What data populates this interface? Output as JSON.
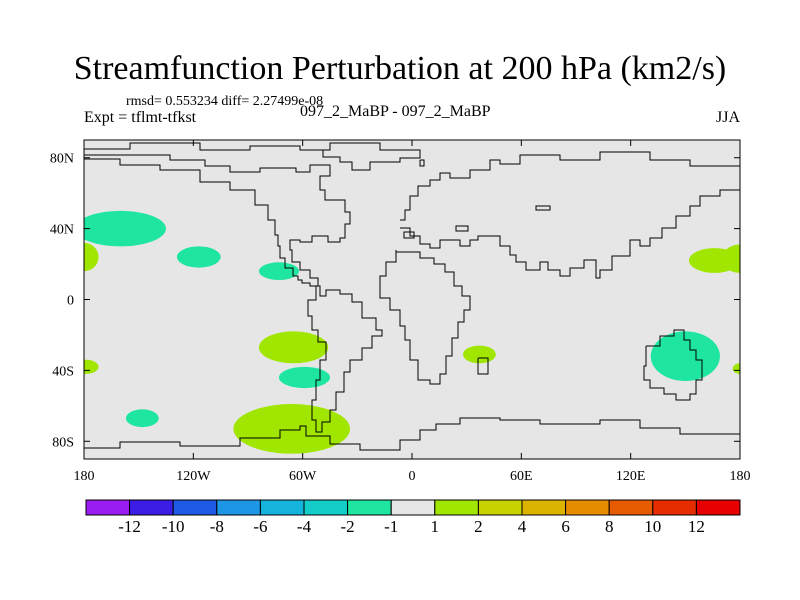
{
  "chart_data": {
    "type": "heatmap",
    "title": "Streamfunction Perturbation at 200 hPa (km2/s)",
    "stats_text": "rmsd= 0.553234 diff= 2.27499e-08",
    "left_label": "Expt = tflmt-tfkst",
    "center_label": "097_2_MaBP - 097_2_MaBP",
    "right_label": "JJA",
    "x_range": [
      -180,
      180
    ],
    "y_range": [
      -90,
      90
    ],
    "x_ticks": [
      {
        "value": -180,
        "label": "180"
      },
      {
        "value": -120,
        "label": "120W"
      },
      {
        "value": -60,
        "label": "60W"
      },
      {
        "value": 0,
        "label": "0"
      },
      {
        "value": 60,
        "label": "60E"
      },
      {
        "value": 120,
        "label": "120E"
      },
      {
        "value": 180,
        "label": "180"
      }
    ],
    "y_ticks": [
      {
        "value": 80,
        "label": "80N"
      },
      {
        "value": 40,
        "label": "40N"
      },
      {
        "value": 0,
        "label": "0"
      },
      {
        "value": -40,
        "label": "40S"
      },
      {
        "value": -80,
        "label": "80S"
      }
    ],
    "background_color": "#e6e6e6",
    "colorbar": {
      "labels": [
        "-12",
        "-10",
        "-8",
        "-6",
        "-4",
        "-2",
        "-1",
        "1",
        "2",
        "4",
        "6",
        "8",
        "10",
        "12"
      ],
      "colors": [
        "#9a1cf0",
        "#3c1de6",
        "#1e5ae6",
        "#1e96e6",
        "#14b4dc",
        "#14cdc8",
        "#1ee6a0",
        "#e6e6e6",
        "#a0e600",
        "#c8d200",
        "#dcb400",
        "#e68c00",
        "#e65a00",
        "#e62d00",
        "#e60000"
      ]
    },
    "anomalies": [
      {
        "lon": -160,
        "lat": 40,
        "rlon": 25,
        "rlat": 10,
        "value": -1.5
      },
      {
        "lon": -117,
        "lat": 24,
        "rlon": 12,
        "rlat": 6,
        "value": -1.5
      },
      {
        "lon": -73,
        "lat": 16,
        "rlon": 11,
        "rlat": 5,
        "value": -1.5
      },
      {
        "lon": -65,
        "lat": -27,
        "rlon": 19,
        "rlat": 9,
        "value": 1.5
      },
      {
        "lon": -59,
        "lat": -44,
        "rlon": 14,
        "rlat": 6,
        "value": -1.5
      },
      {
        "lon": -66,
        "lat": -73,
        "rlon": 32,
        "rlat": 14,
        "value": 1.5
      },
      {
        "lon": -180,
        "lat": 24,
        "rlon": 8,
        "rlat": 8,
        "value": 1.5
      },
      {
        "lon": -179,
        "lat": -38,
        "rlon": 7,
        "rlat": 4,
        "value": 1.5
      },
      {
        "lon": -148,
        "lat": -67,
        "rlon": 9,
        "rlat": 5,
        "value": -1.5
      },
      {
        "lon": 37,
        "lat": -31,
        "rlon": 9,
        "rlat": 5,
        "value": 1.5
      },
      {
        "lon": 150,
        "lat": -32,
        "rlon": 19,
        "rlat": 14,
        "value": -1.5
      },
      {
        "lon": 166,
        "lat": 22,
        "rlon": 14,
        "rlat": 7,
        "value": 1.5
      },
      {
        "lon": 180,
        "lat": 23,
        "rlon": 10,
        "rlat": 8,
        "value": 1.5
      },
      {
        "lon": 180,
        "lat": -39,
        "rlon": 4,
        "rlat": 3,
        "value": 1.5
      }
    ]
  }
}
